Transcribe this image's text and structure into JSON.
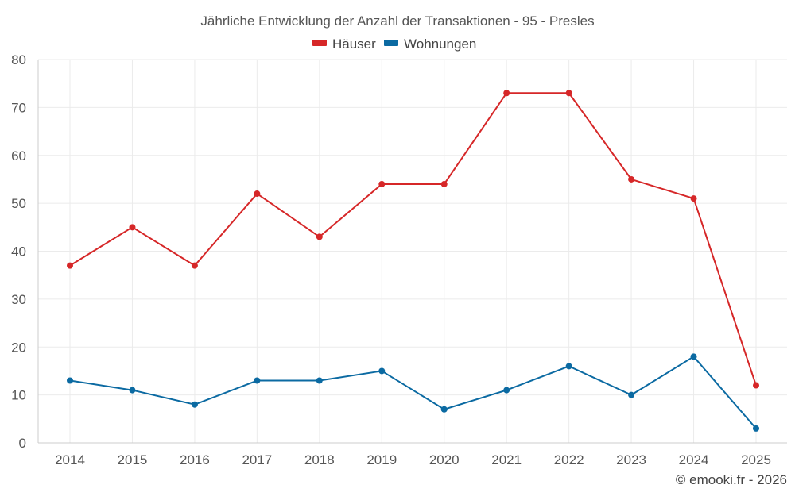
{
  "chart_data": {
    "type": "line",
    "title": "Jährliche Entwicklung der Anzahl der Transaktionen - 95 - Presles",
    "categories": [
      "2014",
      "2015",
      "2016",
      "2017",
      "2018",
      "2019",
      "2020",
      "2021",
      "2022",
      "2023",
      "2024",
      "2025"
    ],
    "series": [
      {
        "name": "Häuser",
        "color": "#d62728",
        "values": [
          37,
          45,
          37,
          52,
          43,
          54,
          54,
          73,
          73,
          55,
          51,
          12
        ]
      },
      {
        "name": "Wohnungen",
        "color": "#0b6aa2",
        "values": [
          13,
          11,
          8,
          13,
          13,
          15,
          7,
          11,
          16,
          10,
          18,
          3
        ]
      }
    ],
    "ylim": [
      0,
      80
    ],
    "yticks": [
      "0",
      "10",
      "20",
      "30",
      "40",
      "50",
      "60",
      "70",
      "80"
    ],
    "xlabel": "",
    "ylabel": "",
    "grid": true,
    "legend_position": "top-center"
  },
  "footer": {
    "credit": "© emooki.fr - 2026"
  }
}
